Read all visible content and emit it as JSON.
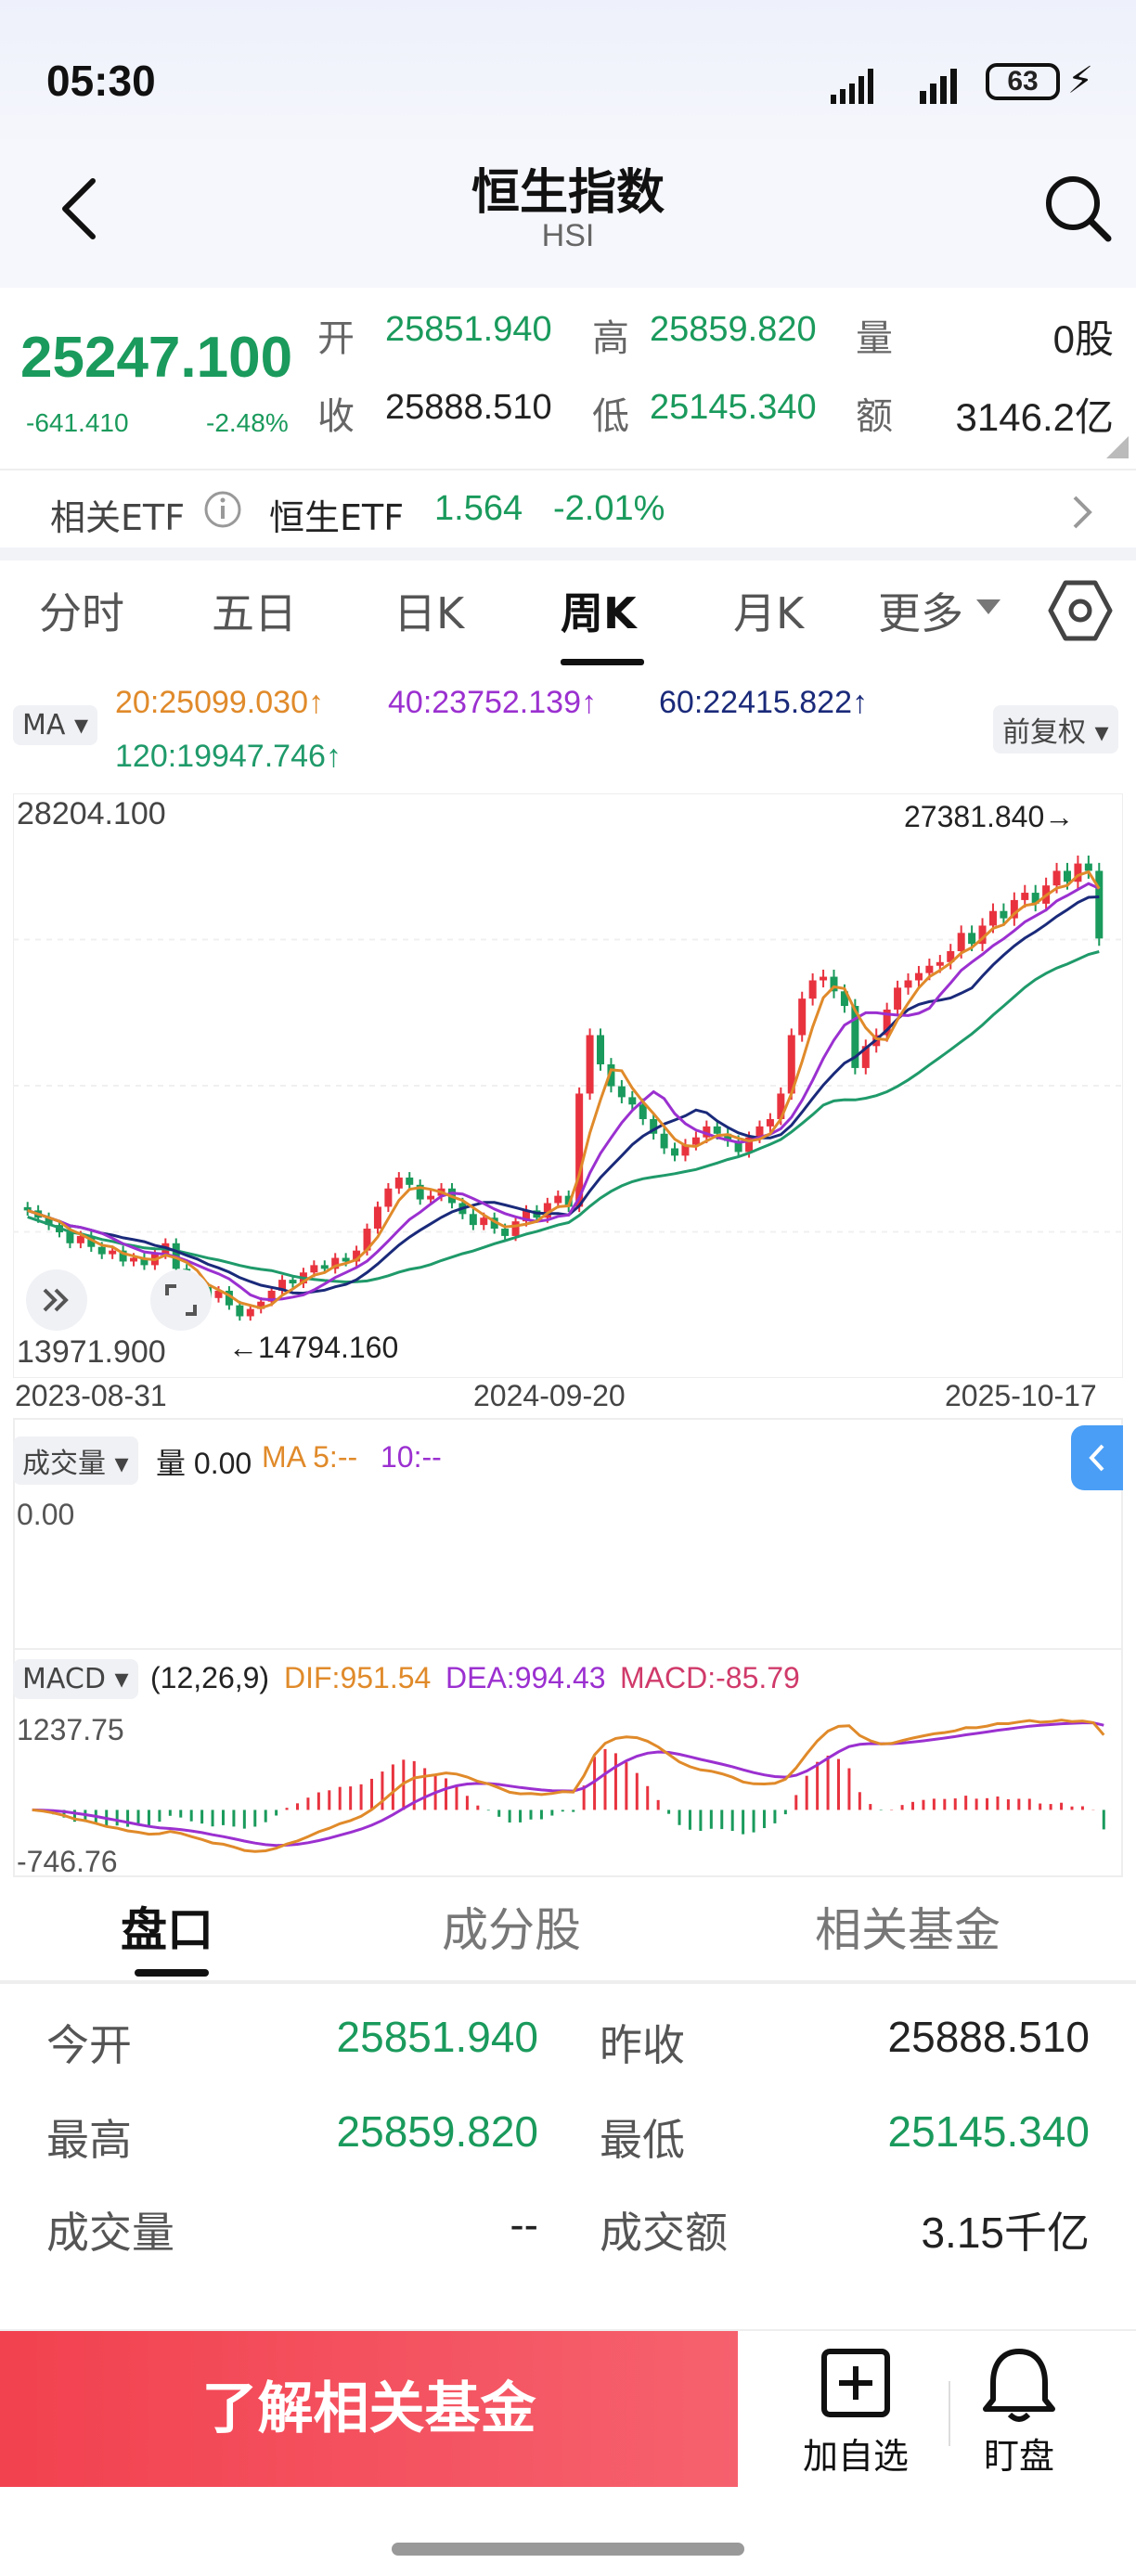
{
  "status": {
    "time": "05:30",
    "battery": "63"
  },
  "header": {
    "title": "恒生指数",
    "subtitle": "HSI"
  },
  "quote": {
    "price": "25247.100",
    "change": "-641.410",
    "change_pct": "-2.48%",
    "open_label": "开",
    "open": "25851.940",
    "high_label": "高",
    "high": "25859.820",
    "vol_label": "量",
    "vol": "0股",
    "close_label": "收",
    "close": "25888.510",
    "low_label": "低",
    "low": "25145.340",
    "amt_label": "额",
    "amt": "3146.2亿"
  },
  "etf": {
    "label": "相关ETF",
    "name": "恒生ETF",
    "price": "1.564",
    "pct": "-2.01%"
  },
  "ktabs": [
    "分时",
    "五日",
    "日K",
    "周K",
    "月K",
    "更多"
  ],
  "ma": {
    "badge": "MA",
    "ma20": "20:25099.030↑",
    "ma40": "40:23752.139↑",
    "ma60": "60:22415.822↑",
    "ma120": "120:19947.746↑",
    "adjust": "前复权"
  },
  "chart_data": {
    "type": "candlestick",
    "y_max_label": "28204.100",
    "y_min_label": "13971.900",
    "high_marker": "27381.840→",
    "low_marker": "←14794.160",
    "x_labels": [
      "2023-08-31",
      "2024-09-20",
      "2025-10-17"
    ],
    "ylim": [
      13971.9,
      28204.1
    ],
    "colors": {
      "up": "#e8333f",
      "down": "#1a9a5c",
      "ma20": "#e08a2a",
      "ma40": "#9b30d0",
      "ma60": "#1a2a7a",
      "ma120": "#1f9a6a"
    },
    "closes": [
      17800,
      17600,
      17400,
      17200,
      16900,
      17100,
      16800,
      16600,
      16700,
      16400,
      16500,
      16300,
      16600,
      16900,
      16200,
      15800,
      15700,
      15400,
      15600,
      15200,
      14900,
      15100,
      15300,
      15600,
      15900,
      15800,
      16100,
      16300,
      16200,
      16500,
      16400,
      16700,
      17300,
      17900,
      18400,
      18700,
      18500,
      18100,
      18200,
      18400,
      18000,
      17700,
      17400,
      17600,
      17300,
      17100,
      17500,
      17800,
      17600,
      18000,
      18200,
      17900,
      21000,
      22600,
      21800,
      21200,
      20900,
      20700,
      20300,
      19900,
      19500,
      19300,
      19600,
      19800,
      20100,
      19900,
      19700,
      19400,
      19800,
      20100,
      20300,
      21000,
      22600,
      23600,
      24100,
      24200,
      23800,
      23400,
      21700,
      22300,
      22600,
      23300,
      23900,
      24100,
      24300,
      24500,
      24600,
      24900,
      25400,
      25100,
      25600,
      26000,
      25800,
      26300,
      26500,
      26200,
      26700,
      27100,
      26800,
      27300,
      27100,
      25247
    ]
  },
  "volume": {
    "badge": "成交量",
    "label": "量 0.00",
    "ma5": "MA 5:--",
    "ma10": "10:--",
    "axis": "0.00"
  },
  "macd": {
    "badge": "MACD",
    "params": "(12,26,9)",
    "dif": "DIF:951.54",
    "dea": "DEA:994.43",
    "macd": "MACD:-85.79",
    "ymax": "1237.75",
    "ymin": "-746.76",
    "colors": {
      "dif": "#e08a2a",
      "dea": "#9b30d0"
    }
  },
  "btabs": [
    "盘口",
    "成分股",
    "相关基金"
  ],
  "details": {
    "open_label": "今开",
    "open": "25851.940",
    "prev_label": "昨收",
    "prev": "25888.510",
    "high_label": "最高",
    "high": "25859.820",
    "low_label": "最低",
    "low": "25145.340",
    "vol_label": "成交量",
    "vol": "--",
    "amt_label": "成交额",
    "amt": "3.15千亿"
  },
  "bottom": {
    "cta": "了解相关基金",
    "add": "加自选",
    "watch": "盯盘"
  }
}
